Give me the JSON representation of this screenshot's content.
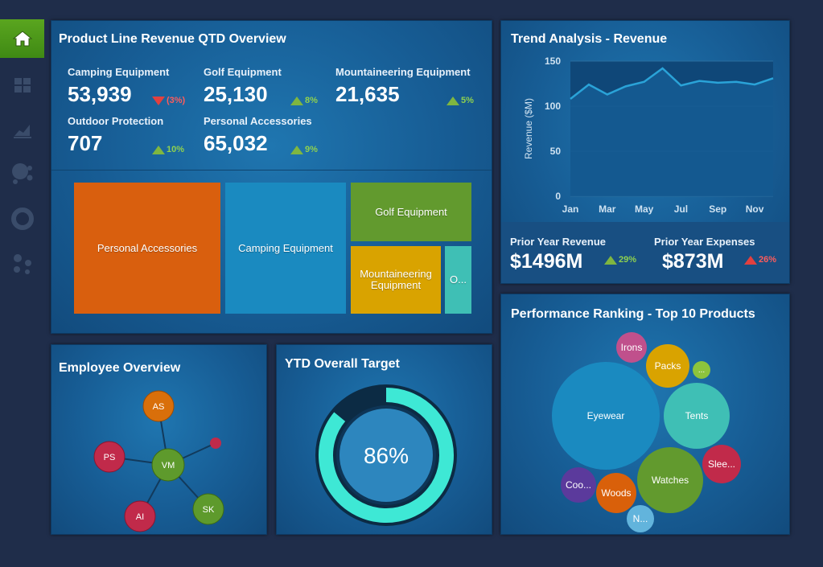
{
  "sidebar": {
    "items": [
      {
        "name": "home-icon",
        "active": true
      },
      {
        "name": "dashboard-icon",
        "active": false
      },
      {
        "name": "line-chart-icon",
        "active": false
      },
      {
        "name": "bubbles-icon",
        "active": false
      },
      {
        "name": "donut-icon",
        "active": false
      },
      {
        "name": "network-icon",
        "active": false
      }
    ]
  },
  "revenue_overview": {
    "title": "Product Line Revenue QTD Overview",
    "kpis": [
      {
        "label": "Camping Equipment",
        "value": "53,939",
        "delta": "(3%)",
        "direction": "down"
      },
      {
        "label": "Golf Equipment",
        "value": "25,130",
        "delta": "8%",
        "direction": "up"
      },
      {
        "label": "Mountaineering Equipment",
        "value": "21,635",
        "delta": "5%",
        "direction": "up"
      },
      {
        "label": "Outdoor Protection",
        "value": "707",
        "delta": "10%",
        "direction": "up"
      },
      {
        "label": "Personal Accessories",
        "value": "65,032",
        "delta": "9%",
        "direction": "up"
      }
    ],
    "treemap": [
      {
        "label": "Personal Accessories",
        "color": "#d95f0e"
      },
      {
        "label": "Camping Equipment",
        "color": "#1a8ac0"
      },
      {
        "label": "Golf Equipment",
        "color": "#629a2e"
      },
      {
        "label": "Mountaineering Equipment",
        "color": "#d9a300"
      },
      {
        "label": "O...",
        "color": "#3fbfb5"
      }
    ]
  },
  "trend": {
    "title": "Trend Analysis - Revenue",
    "prior_revenue_label": "Prior Year Revenue",
    "prior_revenue_value": "$1496M",
    "prior_revenue_delta": "29%",
    "prior_expenses_label": "Prior Year Expenses",
    "prior_expenses_value": "$873M",
    "prior_expenses_delta": "26%"
  },
  "chart_data": {
    "type": "area",
    "title": "Trend Analysis - Revenue",
    "ylabel": "Revenue ($M)",
    "xlabel": "",
    "ylim": [
      0,
      150
    ],
    "yticks": [
      0,
      50,
      100,
      150
    ],
    "tick_labels": [
      "Jan",
      "Mar",
      "May",
      "Jul",
      "Sep",
      "Nov"
    ],
    "x": [
      1,
      2,
      3,
      4,
      5,
      6,
      7,
      8,
      9,
      10,
      11,
      12
    ],
    "values": [
      108,
      124,
      113,
      122,
      127,
      142,
      123,
      128,
      126,
      127,
      124,
      131
    ],
    "color": "#2aa3d8"
  },
  "employee": {
    "title": "Employee Overview",
    "nodes": [
      {
        "label": "VM",
        "color": "#5e9a2c"
      },
      {
        "label": "AS",
        "color": "#d96f0a"
      },
      {
        "label": "PS",
        "color": "#c12a4a"
      },
      {
        "label": "AI",
        "color": "#c12a4a"
      },
      {
        "label": "SK",
        "color": "#5e9a2c"
      },
      {
        "label": "",
        "color": "#c12a4a"
      }
    ]
  },
  "ytd": {
    "title": "YTD Overall Target",
    "percent": 86,
    "value_text": "86%"
  },
  "ranking": {
    "title": "Performance Ranking - Top 10 Products",
    "bubbles": [
      {
        "label": "Eyewear",
        "color": "#1a8ac0"
      },
      {
        "label": "Tents",
        "color": "#3fbfb5"
      },
      {
        "label": "Watches",
        "color": "#629a2e"
      },
      {
        "label": "Irons",
        "color": "#c0508c"
      },
      {
        "label": "Packs",
        "color": "#d9a300"
      },
      {
        "label": "...",
        "color": "#8cc43c"
      },
      {
        "label": "Slee...",
        "color": "#c12a4a"
      },
      {
        "label": "Woods",
        "color": "#d9600a"
      },
      {
        "label": "Coo...",
        "color": "#5b3a9c"
      },
      {
        "label": "N...",
        "color": "#62b4dc"
      }
    ]
  }
}
